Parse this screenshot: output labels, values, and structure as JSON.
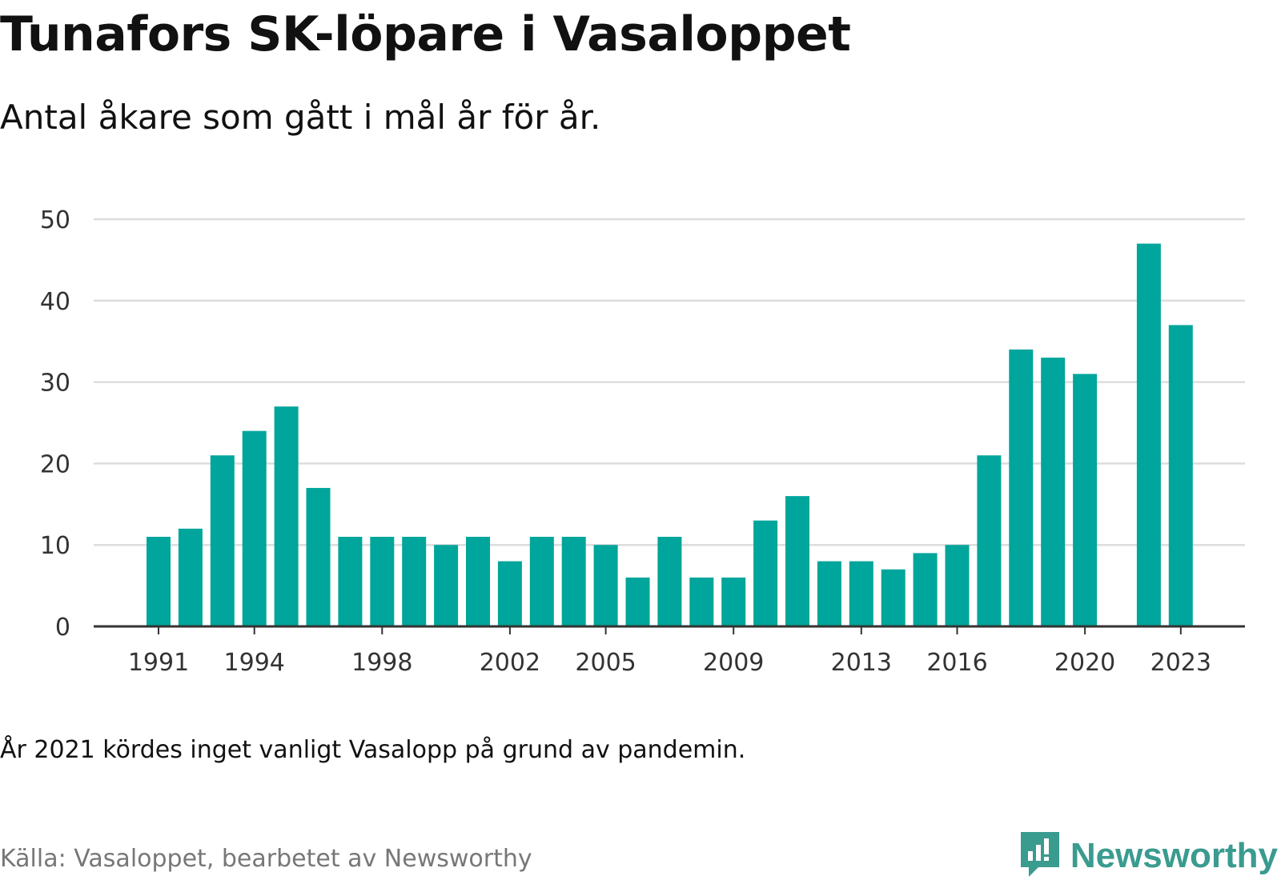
{
  "title": "Tunafors SK-löpare i Vasaloppet",
  "subtitle": "Antal åkare som gått i mål år för år.",
  "note": "År 2021 kördes inget vanligt Vasalopp på grund av pandemin.",
  "source": "Källa: Vasaloppet, bearbetet av Newsworthy",
  "brand": {
    "name": "Newsworthy",
    "icon": "newsworthy-logo-icon",
    "color": "#3a9b8f"
  },
  "colors": {
    "bar": "#00a59b",
    "grid": "#dddddd",
    "axis": "#333333"
  },
  "chart_data": {
    "type": "bar",
    "x": [
      1991,
      1992,
      1993,
      1994,
      1995,
      1996,
      1997,
      1998,
      1999,
      2000,
      2001,
      2002,
      2003,
      2004,
      2005,
      2006,
      2007,
      2008,
      2009,
      2010,
      2011,
      2012,
      2013,
      2014,
      2015,
      2016,
      2017,
      2018,
      2019,
      2020,
      2021,
      2022,
      2023
    ],
    "values": [
      11,
      12,
      21,
      24,
      27,
      17,
      11,
      11,
      11,
      10,
      11,
      8,
      11,
      11,
      10,
      6,
      11,
      6,
      6,
      13,
      16,
      8,
      8,
      7,
      9,
      10,
      21,
      34,
      33,
      31,
      null,
      47,
      37
    ],
    "xticks": [
      1991,
      1994,
      1998,
      2002,
      2005,
      2009,
      2013,
      2016,
      2020,
      2023
    ],
    "yticks": [
      0,
      10,
      20,
      30,
      40,
      50
    ],
    "ylim": [
      0,
      50
    ],
    "grid": true,
    "legend": "none"
  }
}
